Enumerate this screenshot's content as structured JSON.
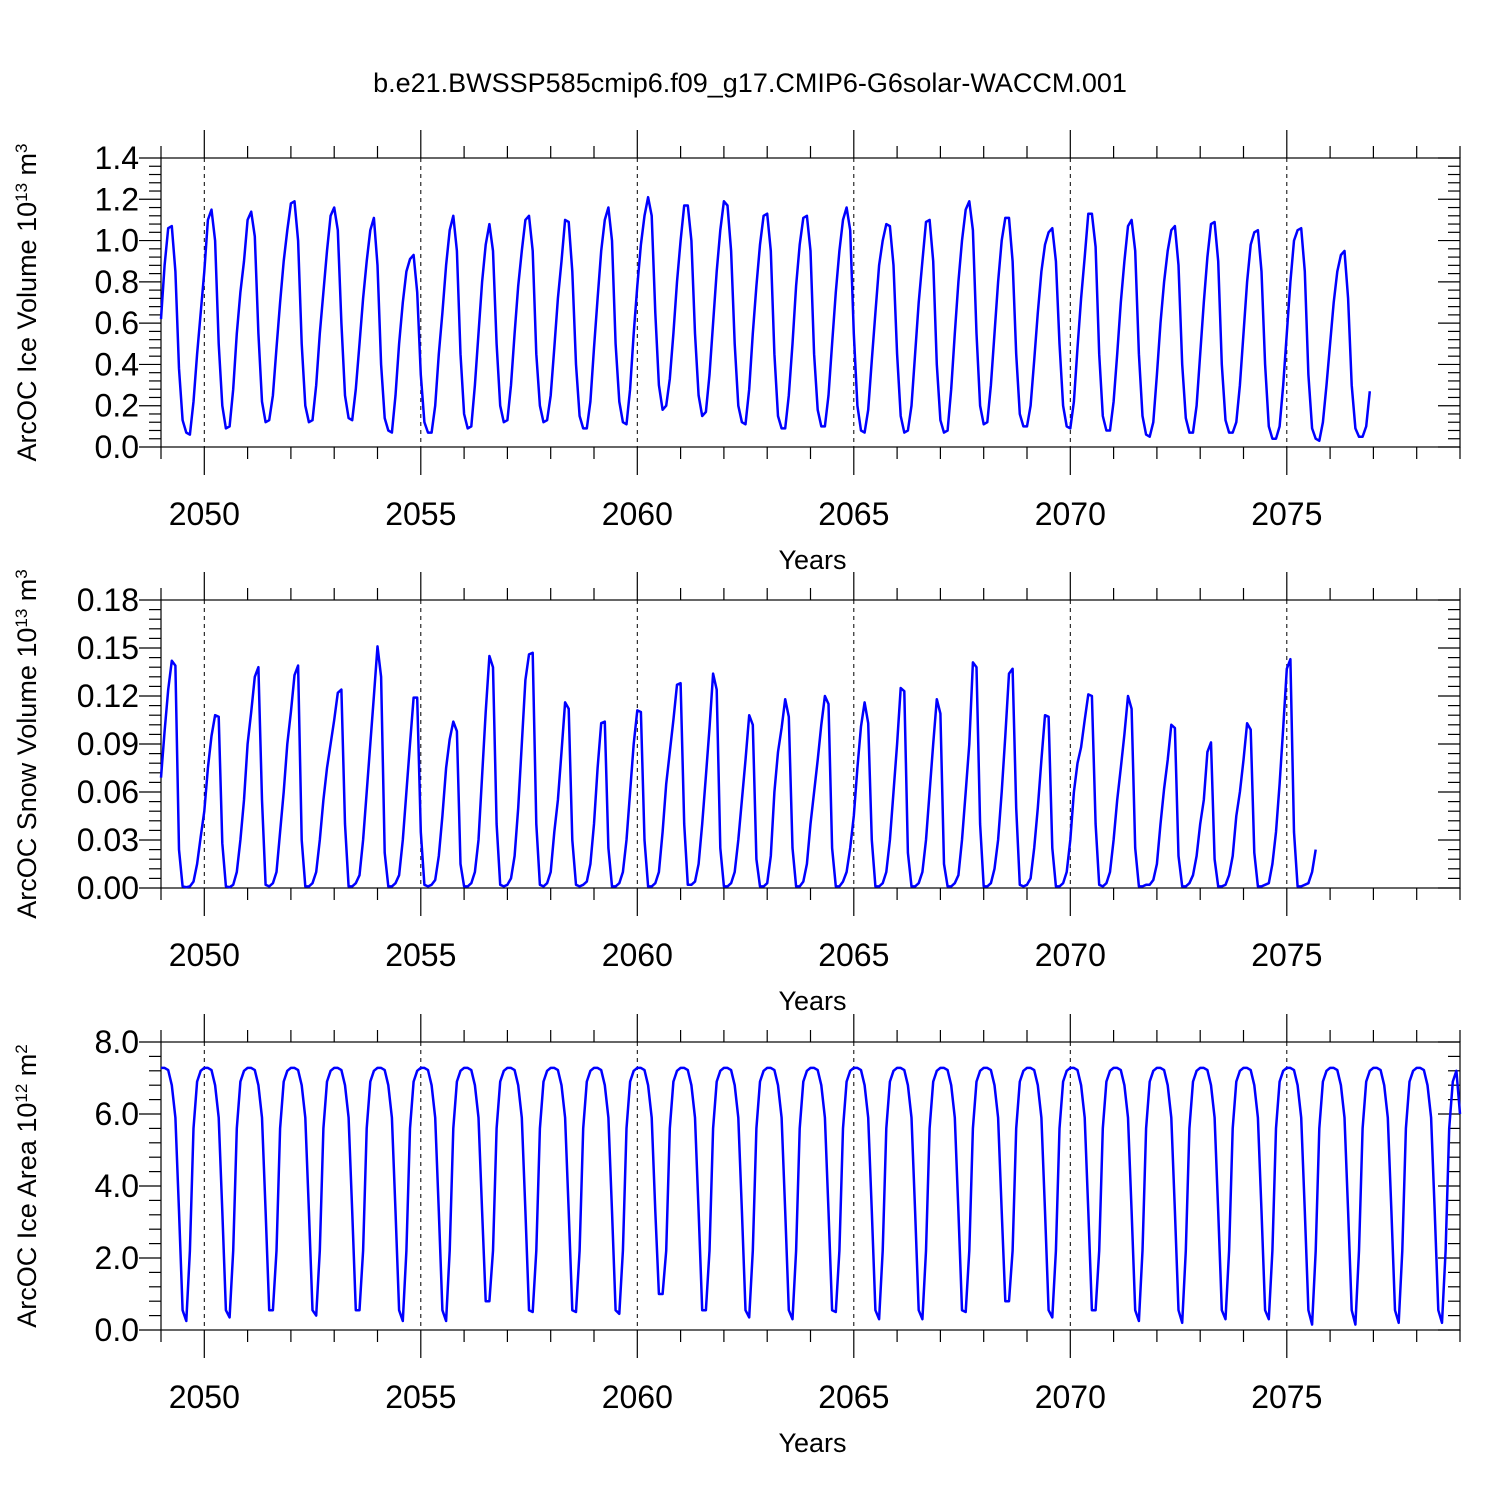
{
  "figure_title": "b.e21.BWSSP585cmip6.f09_g17.CMIP6-G6solar-WACCM.001",
  "colors": {
    "series": "#0000ff",
    "axes": "#000000",
    "background": "#ffffff"
  },
  "chart_data": [
    {
      "type": "line",
      "title": "",
      "ylabel": {
        "text": "ArcOC Ice Volume 10",
        "exp": "13",
        "unit": " m",
        "unit_exp": "3"
      },
      "xlabel": "Years",
      "xlim": [
        2049.0,
        2079.0
      ],
      "ylim": [
        0.0,
        1.4
      ],
      "x_ticks": [
        2050,
        2055,
        2060,
        2065,
        2070,
        2075
      ],
      "y_ticks": [
        "0.0",
        "0.2",
        "0.4",
        "0.6",
        "0.8",
        "1.0",
        "1.2",
        "1.4"
      ],
      "grid": "vertical dashed at major x ticks",
      "x_start": 2049.0,
      "x_step": 0.0833333,
      "series": [
        {
          "values": [
            0.62,
            0.88,
            1.06,
            1.07,
            0.85,
            0.38,
            0.13,
            0.07,
            0.06,
            0.22,
            0.45,
            0.65,
            0.85,
            1.1,
            1.15,
            1.0,
            0.5,
            0.2,
            0.09,
            0.1,
            0.28,
            0.55,
            0.75,
            0.9,
            1.1,
            1.14,
            1.02,
            0.55,
            0.22,
            0.12,
            0.13,
            0.25,
            0.48,
            0.7,
            0.9,
            1.05,
            1.18,
            1.19,
            1.0,
            0.5,
            0.2,
            0.12,
            0.13,
            0.3,
            0.55,
            0.75,
            0.95,
            1.12,
            1.16,
            1.05,
            0.6,
            0.25,
            0.14,
            0.13,
            0.28,
            0.5,
            0.72,
            0.9,
            1.05,
            1.11,
            0.88,
            0.4,
            0.14,
            0.08,
            0.07,
            0.25,
            0.5,
            0.7,
            0.85,
            0.91,
            0.93,
            0.75,
            0.35,
            0.12,
            0.07,
            0.07,
            0.2,
            0.45,
            0.65,
            0.88,
            1.05,
            1.12,
            0.95,
            0.45,
            0.16,
            0.09,
            0.1,
            0.3,
            0.55,
            0.8,
            0.98,
            1.08,
            0.95,
            0.5,
            0.2,
            0.12,
            0.13,
            0.3,
            0.55,
            0.78,
            0.95,
            1.1,
            1.12,
            0.95,
            0.45,
            0.2,
            0.12,
            0.13,
            0.25,
            0.48,
            0.72,
            0.9,
            1.1,
            1.09,
            0.85,
            0.4,
            0.15,
            0.09,
            0.09,
            0.22,
            0.48,
            0.72,
            0.95,
            1.1,
            1.16,
            1.0,
            0.5,
            0.22,
            0.12,
            0.11,
            0.28,
            0.55,
            0.78,
            0.98,
            1.12,
            1.21,
            1.12,
            0.65,
            0.3,
            0.18,
            0.2,
            0.33,
            0.55,
            0.8,
            1.0,
            1.17,
            1.17,
            1.0,
            0.55,
            0.25,
            0.15,
            0.17,
            0.35,
            0.6,
            0.85,
            1.05,
            1.19,
            1.17,
            0.95,
            0.5,
            0.2,
            0.12,
            0.11,
            0.28,
            0.55,
            0.78,
            0.98,
            1.12,
            1.13,
            0.95,
            0.45,
            0.15,
            0.09,
            0.09,
            0.25,
            0.5,
            0.78,
            0.98,
            1.11,
            1.12,
            0.95,
            0.45,
            0.18,
            0.1,
            0.1,
            0.25,
            0.5,
            0.75,
            0.95,
            1.1,
            1.16,
            1.05,
            0.55,
            0.2,
            0.08,
            0.07,
            0.18,
            0.42,
            0.65,
            0.88,
            1.0,
            1.08,
            1.07,
            0.88,
            0.45,
            0.15,
            0.07,
            0.08,
            0.2,
            0.45,
            0.7,
            0.9,
            1.09,
            1.1,
            0.9,
            0.4,
            0.13,
            0.07,
            0.08,
            0.28,
            0.55,
            0.8,
            1.0,
            1.15,
            1.19,
            1.05,
            0.55,
            0.2,
            0.11,
            0.12,
            0.3,
            0.55,
            0.8,
            1.0,
            1.11,
            1.11,
            0.9,
            0.45,
            0.16,
            0.1,
            0.1,
            0.2,
            0.42,
            0.65,
            0.85,
            0.98,
            1.04,
            1.06,
            0.9,
            0.5,
            0.2,
            0.1,
            0.09,
            0.22,
            0.48,
            0.72,
            0.92,
            1.13,
            1.13,
            0.97,
            0.45,
            0.15,
            0.08,
            0.08,
            0.22,
            0.45,
            0.7,
            0.9,
            1.07,
            1.1,
            0.95,
            0.45,
            0.15,
            0.06,
            0.05,
            0.12,
            0.35,
            0.6,
            0.8,
            0.95,
            1.05,
            1.07,
            0.88,
            0.4,
            0.14,
            0.07,
            0.07,
            0.2,
            0.45,
            0.7,
            0.92,
            1.08,
            1.09,
            0.9,
            0.4,
            0.13,
            0.07,
            0.07,
            0.12,
            0.3,
            0.55,
            0.8,
            0.98,
            1.04,
            1.05,
            0.85,
            0.4,
            0.1,
            0.04,
            0.04,
            0.1,
            0.3,
            0.55,
            0.8,
            1.0,
            1.05,
            1.06,
            0.85,
            0.35,
            0.09,
            0.04,
            0.03,
            0.12,
            0.3,
            0.5,
            0.7,
            0.85,
            0.93,
            0.95,
            0.72,
            0.3,
            0.09,
            0.05,
            0.05,
            0.1,
            0.27
          ]
        }
      ]
    },
    {
      "type": "line",
      "title": "",
      "ylabel": {
        "text": "ArcOC Snow Volume 10",
        "exp": "13",
        "unit": " m",
        "unit_exp": "3"
      },
      "xlabel": "Years",
      "xlim": [
        2049.0,
        2079.0
      ],
      "ylim": [
        0.0,
        0.18
      ],
      "x_ticks": [
        2050,
        2055,
        2060,
        2065,
        2070,
        2075
      ],
      "y_ticks": [
        "0.00",
        "0.03",
        "0.06",
        "0.09",
        "0.12",
        "0.15",
        "0.18"
      ],
      "grid": "vertical dashed at major x ticks",
      "x_start": 2049.0,
      "x_step": 0.0833333,
      "series": [
        {
          "values": [
            0.069,
            0.098,
            0.124,
            0.142,
            0.139,
            0.024,
            0.001,
            0.0005,
            0.001,
            0.004,
            0.015,
            0.032,
            0.048,
            0.075,
            0.095,
            0.108,
            0.107,
            0.028,
            0.001,
            0.0005,
            0.002,
            0.01,
            0.03,
            0.055,
            0.09,
            0.11,
            0.132,
            0.138,
            0.055,
            0.002,
            0.001,
            0.003,
            0.01,
            0.035,
            0.06,
            0.09,
            0.11,
            0.133,
            0.139,
            0.03,
            0.001,
            0.001,
            0.003,
            0.01,
            0.03,
            0.055,
            0.075,
            0.09,
            0.105,
            0.122,
            0.124,
            0.04,
            0.001,
            0.001,
            0.003,
            0.008,
            0.03,
            0.06,
            0.09,
            0.12,
            0.151,
            0.132,
            0.022,
            0.001,
            0.001,
            0.003,
            0.008,
            0.03,
            0.06,
            0.09,
            0.119,
            0.119,
            0.035,
            0.002,
            0.001,
            0.002,
            0.005,
            0.02,
            0.045,
            0.075,
            0.093,
            0.104,
            0.098,
            0.015,
            0.001,
            0.001,
            0.003,
            0.01,
            0.03,
            0.07,
            0.11,
            0.145,
            0.138,
            0.04,
            0.002,
            0.001,
            0.002,
            0.006,
            0.02,
            0.05,
            0.09,
            0.13,
            0.146,
            0.147,
            0.04,
            0.002,
            0.001,
            0.003,
            0.01,
            0.035,
            0.055,
            0.085,
            0.116,
            0.112,
            0.03,
            0.002,
            0.001,
            0.002,
            0.004,
            0.015,
            0.04,
            0.075,
            0.103,
            0.104,
            0.025,
            0.001,
            0.001,
            0.003,
            0.01,
            0.03,
            0.06,
            0.09,
            0.111,
            0.11,
            0.03,
            0.001,
            0.001,
            0.003,
            0.01,
            0.035,
            0.065,
            0.085,
            0.105,
            0.127,
            0.128,
            0.04,
            0.002,
            0.002,
            0.004,
            0.015,
            0.04,
            0.07,
            0.1,
            0.134,
            0.124,
            0.025,
            0.001,
            0.001,
            0.003,
            0.01,
            0.03,
            0.055,
            0.08,
            0.108,
            0.102,
            0.018,
            0.001,
            0.001,
            0.003,
            0.02,
            0.06,
            0.085,
            0.1,
            0.118,
            0.107,
            0.025,
            0.001,
            0.001,
            0.004,
            0.015,
            0.04,
            0.06,
            0.08,
            0.102,
            0.12,
            0.115,
            0.025,
            0.001,
            0.001,
            0.004,
            0.01,
            0.025,
            0.045,
            0.075,
            0.101,
            0.116,
            0.103,
            0.03,
            0.001,
            0.001,
            0.003,
            0.01,
            0.03,
            0.06,
            0.09,
            0.125,
            0.123,
            0.022,
            0.001,
            0.001,
            0.003,
            0.01,
            0.03,
            0.06,
            0.09,
            0.118,
            0.109,
            0.015,
            0.001,
            0.001,
            0.003,
            0.008,
            0.03,
            0.06,
            0.09,
            0.141,
            0.138,
            0.04,
            0.001,
            0.001,
            0.003,
            0.012,
            0.03,
            0.06,
            0.095,
            0.134,
            0.137,
            0.05,
            0.002,
            0.001,
            0.002,
            0.006,
            0.025,
            0.05,
            0.08,
            0.108,
            0.107,
            0.025,
            0.001,
            0.001,
            0.003,
            0.01,
            0.03,
            0.06,
            0.078,
            0.088,
            0.105,
            0.121,
            0.12,
            0.04,
            0.002,
            0.001,
            0.003,
            0.01,
            0.03,
            0.055,
            0.075,
            0.096,
            0.12,
            0.112,
            0.025,
            0.001,
            0.001,
            0.002,
            0.002,
            0.005,
            0.015,
            0.04,
            0.062,
            0.08,
            0.102,
            0.1,
            0.02,
            0.001,
            0.001,
            0.003,
            0.008,
            0.02,
            0.04,
            0.055,
            0.085,
            0.091,
            0.018,
            0.001,
            0.001,
            0.002,
            0.008,
            0.02,
            0.045,
            0.06,
            0.08,
            0.103,
            0.099,
            0.022,
            0.001,
            0.001,
            0.002,
            0.003,
            0.015,
            0.035,
            0.065,
            0.1,
            0.137,
            0.143,
            0.035,
            0.001,
            0.001,
            0.002,
            0.003,
            0.01,
            0.024
          ]
        }
      ]
    },
    {
      "type": "line",
      "title": "",
      "ylabel": {
        "text": "ArcOC Ice Area 10",
        "exp": "12",
        "unit": " m",
        "unit_exp": "2"
      },
      "xlabel": "Years",
      "xlim": [
        2049.0,
        2079.0
      ],
      "ylim": [
        0.0,
        8.0
      ],
      "x_ticks": [
        2050,
        2055,
        2060,
        2065,
        2070,
        2075
      ],
      "y_ticks": [
        "0.0",
        "2.0",
        "4.0",
        "6.0",
        "8.0"
      ],
      "grid": "vertical dashed at major x ticks",
      "x_start": 2049.0,
      "x_step": 0.0833333,
      "annual_pattern": [
        7.28,
        7.28,
        7.22,
        6.8,
        5.9,
        3.3,
        0.55,
        0.25,
        2.2,
        5.6,
        6.9,
        7.2
      ],
      "annual_minima": [
        0.25,
        0.35,
        0.55,
        0.4,
        0.55,
        0.25,
        0.25,
        0.8,
        0.5,
        0.5,
        0.45,
        1.0,
        0.55,
        0.35,
        0.3,
        0.5,
        0.3,
        0.3,
        0.5,
        0.8,
        0.35,
        0.55,
        0.25,
        0.2,
        0.3,
        0.3,
        0.15,
        0.15,
        0.2,
        0.2
      ]
    }
  ]
}
